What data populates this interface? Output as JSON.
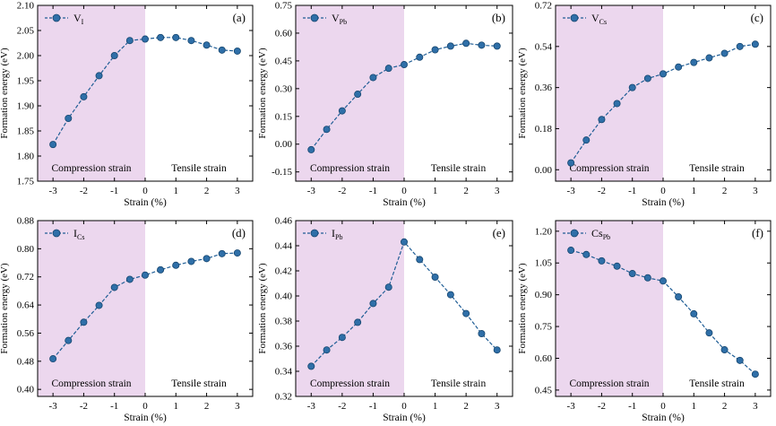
{
  "figure": {
    "x_axis_label": "Strain (%)",
    "y_axis_label": "Formation energy (eV)",
    "region_labels": {
      "compression": "Compression strain",
      "tensile": "Tensile strain"
    },
    "colors": {
      "compression_fill": "#ecd7ee",
      "marker": "#2f6fa8",
      "marker_edge": "#16466f",
      "line": "#1f5d95"
    }
  },
  "chart_data": [
    {
      "type": "line",
      "panel": "(a)",
      "legend": "V",
      "legend_sub": "I",
      "x": [
        -3,
        -2.5,
        -2,
        -1.5,
        -1,
        -0.5,
        0,
        0.5,
        1,
        1.5,
        2,
        2.5,
        3
      ],
      "y": [
        1.823,
        1.875,
        1.918,
        1.96,
        2.0,
        2.03,
        2.033,
        2.036,
        2.036,
        2.03,
        2.021,
        2.011,
        2.009
      ],
      "xlim": [
        -3.5,
        3.5
      ],
      "ylim": [
        1.75,
        2.1
      ],
      "yticks": [
        "1.75",
        "1.80",
        "1.85",
        "1.90",
        "1.95",
        "2.00",
        "2.05",
        "2.10"
      ],
      "xticks": [
        "-3",
        "-2",
        "-1",
        "0",
        "1",
        "2",
        "3"
      ]
    },
    {
      "type": "line",
      "panel": "(b)",
      "legend": "V",
      "legend_sub": "Pb",
      "x": [
        -3,
        -2.5,
        -2,
        -1.5,
        -1,
        -0.5,
        0,
        0.5,
        1,
        1.5,
        2,
        2.5,
        3
      ],
      "y": [
        -0.03,
        0.08,
        0.18,
        0.27,
        0.36,
        0.41,
        0.43,
        0.47,
        0.51,
        0.53,
        0.545,
        0.535,
        0.53
      ],
      "xlim": [
        -3.5,
        3.5
      ],
      "ylim": [
        -0.2,
        0.75
      ],
      "yticks": [
        "-0.15",
        "0.00",
        "0.15",
        "0.30",
        "0.45",
        "0.60",
        "0.75"
      ],
      "ytick_values": [
        -0.15,
        0,
        0.15,
        0.3,
        0.45,
        0.6,
        0.75
      ],
      "xticks": [
        "-3",
        "-2",
        "-1",
        "0",
        "1",
        "2",
        "3"
      ]
    },
    {
      "type": "line",
      "panel": "(c)",
      "legend": "V",
      "legend_sub": "Cs",
      "x": [
        -3,
        -2.5,
        -2,
        -1.5,
        -1,
        -0.5,
        0,
        0.5,
        1,
        1.5,
        2,
        2.5,
        3
      ],
      "y": [
        0.03,
        0.13,
        0.22,
        0.29,
        0.36,
        0.4,
        0.42,
        0.45,
        0.47,
        0.49,
        0.51,
        0.54,
        0.55
      ],
      "xlim": [
        -3.5,
        3.5
      ],
      "ylim": [
        -0.05,
        0.72
      ],
      "yticks": [
        "0.00",
        "0.18",
        "0.36",
        "0.54",
        "0.72"
      ],
      "ytick_values": [
        0,
        0.18,
        0.36,
        0.54,
        0.72
      ],
      "xticks": [
        "-3",
        "-2",
        "-1",
        "0",
        "1",
        "2",
        "3"
      ]
    },
    {
      "type": "line",
      "panel": "(d)",
      "legend": "I",
      "legend_sub": "Cs",
      "x": [
        -3,
        -2.5,
        -2,
        -1.5,
        -1,
        -0.5,
        0,
        0.5,
        1,
        1.5,
        2,
        2.5,
        3
      ],
      "y": [
        0.487,
        0.539,
        0.591,
        0.639,
        0.69,
        0.713,
        0.725,
        0.74,
        0.753,
        0.764,
        0.772,
        0.786,
        0.788
      ],
      "xlim": [
        -3.5,
        3.5
      ],
      "ylim": [
        0.38,
        0.88
      ],
      "yticks": [
        "0.40",
        "0.48",
        "0.56",
        "0.64",
        "0.72",
        "0.80",
        "0.88"
      ],
      "ytick_values": [
        0.4,
        0.48,
        0.56,
        0.64,
        0.72,
        0.8,
        0.88
      ],
      "xticks": [
        "-3",
        "-2",
        "-1",
        "0",
        "1",
        "2",
        "3"
      ]
    },
    {
      "type": "line",
      "panel": "(e)",
      "legend": "I",
      "legend_sub": "Pb",
      "x": [
        -3,
        -2.5,
        -2,
        -1.5,
        -1,
        -0.5,
        0,
        0.5,
        1,
        1.5,
        2,
        2.5,
        3
      ],
      "y": [
        0.344,
        0.357,
        0.367,
        0.379,
        0.394,
        0.407,
        0.443,
        0.429,
        0.415,
        0.401,
        0.386,
        0.37,
        0.357
      ],
      "xlim": [
        -3.5,
        3.5
      ],
      "ylim": [
        0.32,
        0.46
      ],
      "yticks": [
        "0.32",
        "0.34",
        "0.36",
        "0.38",
        "0.40",
        "0.42",
        "0.44",
        "0.46"
      ],
      "ytick_values": [
        0.32,
        0.34,
        0.36,
        0.38,
        0.4,
        0.42,
        0.44,
        0.46
      ],
      "xticks": [
        "-3",
        "-2",
        "-1",
        "0",
        "1",
        "2",
        "3"
      ]
    },
    {
      "type": "line",
      "panel": "(f)",
      "legend": "Cs",
      "legend_sub": "Pb",
      "x": [
        -3,
        -2.5,
        -2,
        -1.5,
        -1,
        -0.5,
        0,
        0.5,
        1,
        1.5,
        2,
        2.5,
        3
      ],
      "y": [
        1.11,
        1.09,
        1.06,
        1.035,
        1.0,
        0.98,
        0.965,
        0.89,
        0.81,
        0.72,
        0.64,
        0.59,
        0.525
      ],
      "xlim": [
        -3.5,
        3.5
      ],
      "ylim": [
        0.42,
        1.25
      ],
      "yticks": [
        "0.45",
        "0.60",
        "0.75",
        "0.90",
        "1.05",
        "1.20"
      ],
      "ytick_values": [
        0.45,
        0.6,
        0.75,
        0.9,
        1.05,
        1.2
      ],
      "xticks": [
        "-3",
        "-2",
        "-1",
        "0",
        "1",
        "2",
        "3"
      ]
    }
  ]
}
